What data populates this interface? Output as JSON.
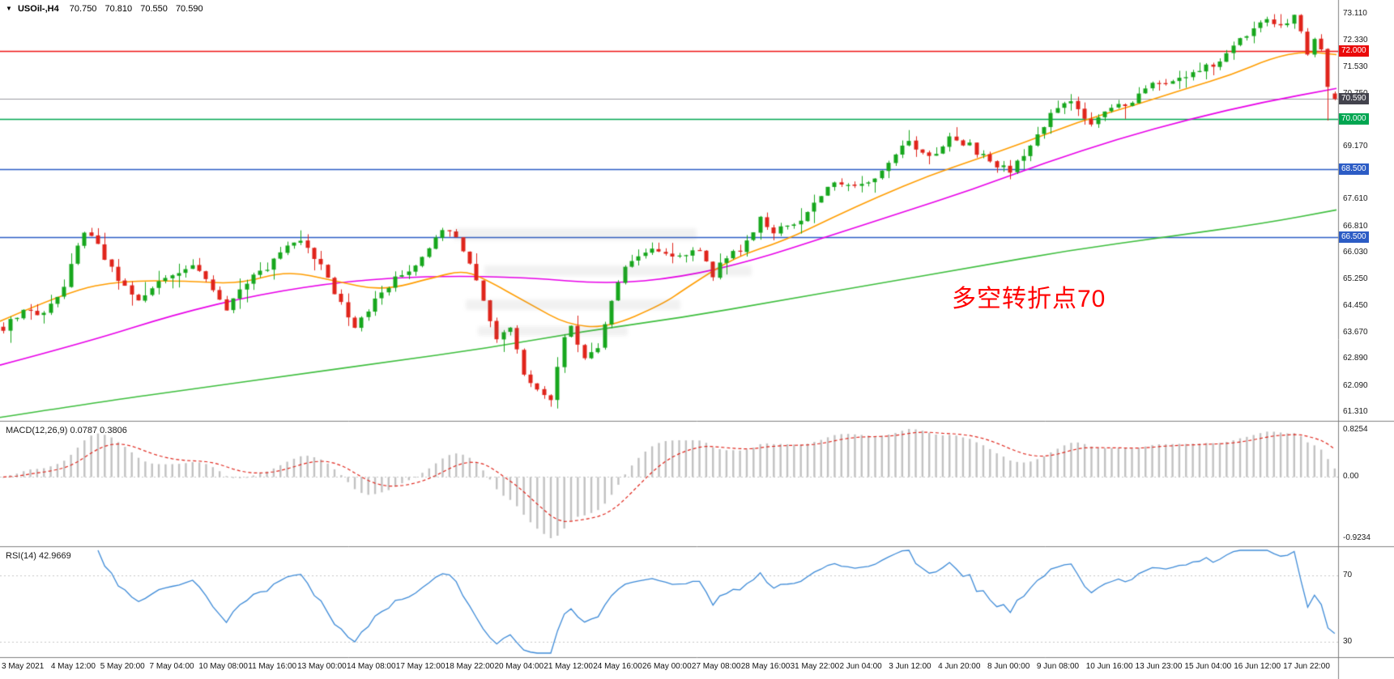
{
  "chart_header": {
    "toggle_icon": "▼",
    "symbol": "USOil-,H4",
    "open": "70.750",
    "high": "70.810",
    "low": "70.550",
    "close": "70.590"
  },
  "annotation": {
    "text": "多空转折点70",
    "color": "#FF0000"
  },
  "macd_panel": {
    "label": "MACD(12,26,9) 0.0787 0.3806"
  },
  "rsi_panel": {
    "label": "RSI(14) 42.9669"
  },
  "price_axis": {
    "badges": [
      {
        "text": "72.000",
        "price": 72.0,
        "bg": "#EA0A0A"
      },
      {
        "text": "70.590",
        "price": 70.59,
        "bg": "#43434D"
      },
      {
        "text": "70.000",
        "price": 70.0,
        "bg": "#00A651"
      },
      {
        "text": "68.500",
        "price": 68.5,
        "bg": "#2C5CC5"
      },
      {
        "text": "66.500",
        "price": 66.5,
        "bg": "#2C5CC5"
      }
    ]
  },
  "chart_data": {
    "type": "candlestick",
    "symbol": "USOil-",
    "timeframe": "H4",
    "current_ohlc": {
      "open": 70.75,
      "high": 70.81,
      "low": 70.55,
      "close": 70.59
    },
    "price_range_visible": [
      61.0,
      73.5
    ],
    "price_grid_labels": [
      73.11,
      72.33,
      71.53,
      70.75,
      69.17,
      67.61,
      66.81,
      66.03,
      65.25,
      64.45,
      63.67,
      62.89,
      62.09,
      61.31
    ],
    "candle_count": 198,
    "seed": 20210617,
    "up_color": "#17A71D",
    "down_color": "#E0241B",
    "high_clamp": 73.1,
    "low_clamp": 61.33,
    "close_anchors": [
      [
        0,
        63.8
      ],
      [
        3,
        64.4
      ],
      [
        6,
        64.2
      ],
      [
        9,
        65.1
      ],
      [
        12,
        66.7
      ],
      [
        14,
        66.2
      ],
      [
        17,
        65.2
      ],
      [
        20,
        64.7
      ],
      [
        23,
        65.1
      ],
      [
        26,
        65.5
      ],
      [
        28,
        65.7
      ],
      [
        31,
        64.9
      ],
      [
        33,
        64.4
      ],
      [
        36,
        65.2
      ],
      [
        39,
        65.5
      ],
      [
        42,
        66.3
      ],
      [
        44,
        66.4
      ],
      [
        47,
        65.6
      ],
      [
        50,
        64.5
      ],
      [
        52,
        63.9
      ],
      [
        55,
        64.6
      ],
      [
        58,
        65.3
      ],
      [
        61,
        65.6
      ],
      [
        63,
        66.2
      ],
      [
        65,
        66.7
      ],
      [
        67,
        66.5
      ],
      [
        69,
        65.8
      ],
      [
        71,
        64.6
      ],
      [
        73,
        63.5
      ],
      [
        75,
        63.8
      ],
      [
        77,
        62.5
      ],
      [
        79,
        61.9
      ],
      [
        81,
        61.7
      ],
      [
        83,
        63.6
      ],
      [
        84,
        63.9
      ],
      [
        86,
        62.9
      ],
      [
        88,
        63.3
      ],
      [
        90,
        64.6
      ],
      [
        92,
        65.7
      ],
      [
        94,
        66.0
      ],
      [
        97,
        66.1
      ],
      [
        100,
        65.9
      ],
      [
        103,
        66.1
      ],
      [
        105,
        65.4
      ],
      [
        107,
        65.9
      ],
      [
        110,
        66.3
      ],
      [
        112,
        67.0
      ],
      [
        114,
        66.6
      ],
      [
        116,
        66.9
      ],
      [
        118,
        67.0
      ],
      [
        120,
        67.5
      ],
      [
        123,
        68.2
      ],
      [
        126,
        68.0
      ],
      [
        129,
        68.3
      ],
      [
        132,
        69.0
      ],
      [
        134,
        69.3
      ],
      [
        137,
        68.8
      ],
      [
        140,
        69.4
      ],
      [
        143,
        69.2
      ],
      [
        146,
        68.7
      ],
      [
        149,
        68.5
      ],
      [
        152,
        69.2
      ],
      [
        155,
        70.1
      ],
      [
        158,
        70.5
      ],
      [
        161,
        69.9
      ],
      [
        164,
        70.3
      ],
      [
        167,
        70.5
      ],
      [
        170,
        71.1
      ],
      [
        173,
        71.1
      ],
      [
        176,
        71.4
      ],
      [
        179,
        71.6
      ],
      [
        182,
        72.1
      ],
      [
        185,
        72.7
      ],
      [
        187,
        72.9
      ],
      [
        189,
        72.8
      ],
      [
        191,
        73.0
      ],
      [
        192,
        72.6
      ],
      [
        193,
        72.0
      ],
      [
        194,
        72.3
      ],
      [
        195,
        72.1
      ],
      [
        196,
        71.0
      ],
      [
        197,
        70.59
      ]
    ],
    "last_candle": {
      "open": 70.75,
      "high": 70.81,
      "low": 70.55,
      "close": 70.59
    },
    "penultimate_low": 69.95,
    "horizontal_lines": [
      {
        "price": 72.0,
        "color": "#F01414",
        "width": 1.4,
        "label": "72.000"
      },
      {
        "price": 70.59,
        "color": "#9A9AA2",
        "width": 1.0,
        "label": "70.590"
      },
      {
        "price": 70.0,
        "color": "#00A651",
        "width": 1.4,
        "label": "70.000"
      },
      {
        "price": 68.5,
        "color": "#2C5CC5",
        "width": 1.4,
        "label": "68.500"
      },
      {
        "price": 66.5,
        "color": "#2C5CC5",
        "width": 1.4,
        "label": "66.500"
      }
    ],
    "moving_averages": [
      {
        "name": "ma-fast-orange",
        "color": "#FF9D00",
        "points": [
          [
            0,
            64.0
          ],
          [
            85,
            64.9
          ],
          [
            150,
            65.2
          ],
          [
            230,
            65.2
          ],
          [
            295,
            65.1
          ],
          [
            354,
            65.5
          ],
          [
            413,
            65.2
          ],
          [
            472,
            64.9
          ],
          [
            536,
            65.3
          ],
          [
            570,
            65.5
          ],
          [
            595,
            65.3
          ],
          [
            655,
            64.5
          ],
          [
            700,
            63.9
          ],
          [
            750,
            63.8
          ],
          [
            818,
            64.5
          ],
          [
            848,
            65.0
          ],
          [
            907,
            65.9
          ],
          [
            970,
            66.4
          ],
          [
            1030,
            67.1
          ],
          [
            1085,
            67.7
          ],
          [
            1145,
            68.3
          ],
          [
            1205,
            68.8
          ],
          [
            1265,
            69.3
          ],
          [
            1330,
            69.9
          ],
          [
            1400,
            70.4
          ],
          [
            1465,
            70.9
          ],
          [
            1520,
            71.3
          ],
          [
            1570,
            71.8
          ],
          [
            1610,
            72.0
          ],
          [
            1650,
            71.9
          ]
        ]
      },
      {
        "name": "ma-medium-magenta",
        "color": "#E800E8",
        "points": [
          [
            0,
            62.7
          ],
          [
            110,
            63.4
          ],
          [
            215,
            64.2
          ],
          [
            320,
            64.8
          ],
          [
            430,
            65.2
          ],
          [
            540,
            65.35
          ],
          [
            650,
            65.3
          ],
          [
            750,
            65.1
          ],
          [
            840,
            65.3
          ],
          [
            930,
            65.8
          ],
          [
            1020,
            66.5
          ],
          [
            1110,
            67.2
          ],
          [
            1200,
            67.9
          ],
          [
            1290,
            68.7
          ],
          [
            1380,
            69.4
          ],
          [
            1470,
            70.0
          ],
          [
            1560,
            70.5
          ],
          [
            1650,
            70.9
          ]
        ]
      },
      {
        "name": "ma-slow-green",
        "color": "#3DBE3D",
        "points": [
          [
            0,
            61.15
          ],
          [
            120,
            61.6
          ],
          [
            240,
            62.0
          ],
          [
            360,
            62.4
          ],
          [
            480,
            62.8
          ],
          [
            600,
            63.2
          ],
          [
            720,
            63.7
          ],
          [
            840,
            64.1
          ],
          [
            960,
            64.6
          ],
          [
            1080,
            65.1
          ],
          [
            1200,
            65.6
          ],
          [
            1320,
            66.1
          ],
          [
            1440,
            66.5
          ],
          [
            1560,
            66.9
          ],
          [
            1650,
            67.3
          ]
        ]
      }
    ],
    "macd": {
      "params": [
        12,
        26,
        9
      ],
      "value": 0.0787,
      "signal_value": 0.3806,
      "axis_max": 0.8254,
      "axis_min": -0.9234,
      "histogram_color": "#C2C2C2",
      "signal_color": "#E0281E"
    },
    "rsi": {
      "period": 14,
      "value": 42.9669,
      "levels": [
        70,
        30
      ],
      "line_color": "#3E8BD8",
      "range": [
        23,
        85
      ]
    },
    "time_labels": [
      "3 May 2021",
      "4 May 12:00",
      "5 May 20:00",
      "7 May 04:00",
      "10 May 08:00",
      "11 May 16:00",
      "13 May 00:00",
      "14 May 08:00",
      "17 May 12:00",
      "18 May 22:00",
      "20 May 04:00",
      "21 May 12:00",
      "24 May 16:00",
      "26 May 00:00",
      "27 May 08:00",
      "28 May 16:00",
      "31 May 22:00",
      "2 Jun 04:00",
      "3 Jun 12:00",
      "4 Jun 20:00",
      "8 Jun 00:00",
      "9 Jun 08:00",
      "10 Jun 16:00",
      "13 Jun 23:00",
      "15 Jun 04:00",
      "16 Jun 12:00",
      "17 Jun 22:00"
    ]
  }
}
